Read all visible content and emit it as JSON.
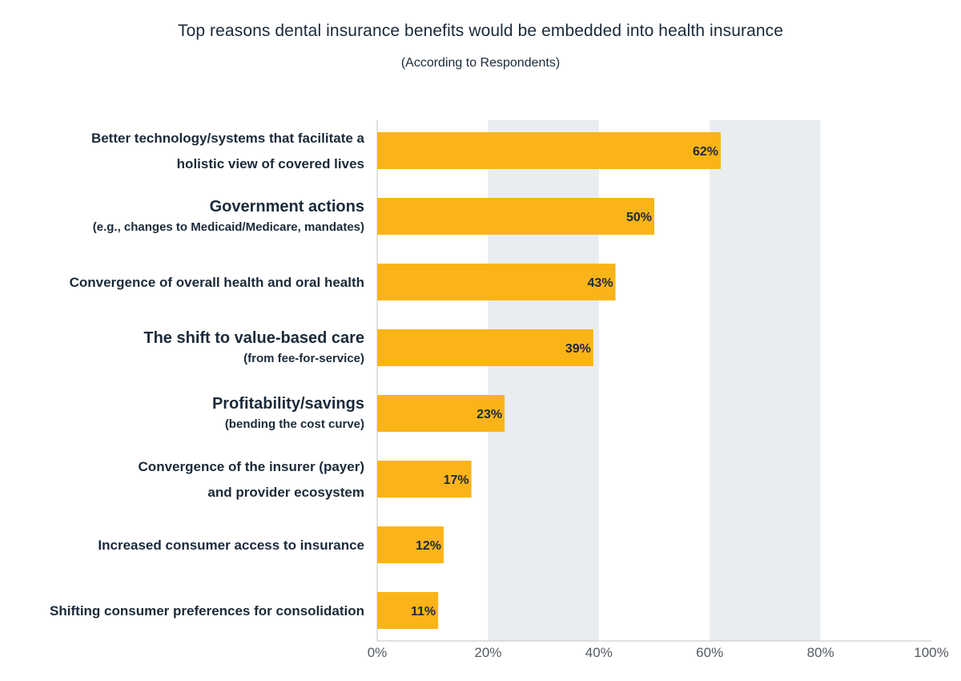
{
  "chart_data": {
    "type": "bar",
    "orientation": "horizontal",
    "title": "Top reasons dental insurance benefits would be embedded into health insurance",
    "subtitle": "(According to Respondents)",
    "xlabel": "",
    "ylabel": "",
    "xlim": [
      0,
      100
    ],
    "x_ticks": [
      "0%",
      "20%",
      "40%",
      "60%",
      "80%",
      "100%"
    ],
    "grid": "alternating vertical bands",
    "bar_color": "#fbb418",
    "band_color": "#e9edf0",
    "categories": [
      {
        "line1": "Better technology/systems that facilitate a",
        "line2": "holistic view of covered lives",
        "style": "two-line"
      },
      {
        "line1": "Government actions",
        "line2": "(e.g., changes to Medicaid/Medicare, mandates)",
        "style": "main-sub"
      },
      {
        "line1": "Convergence of overall health and oral health",
        "line2": "",
        "style": "single"
      },
      {
        "line1": "The shift to value-based care",
        "line2": "(from fee-for-service)",
        "style": "main-sub"
      },
      {
        "line1": "Profitability/savings",
        "line2": "(bending the cost curve)",
        "style": "main-sub"
      },
      {
        "line1": "Convergence of the insurer (payer)",
        "line2": "and provider ecosystem",
        "style": "two-line"
      },
      {
        "line1": "Increased consumer access to insurance",
        "line2": "",
        "style": "single"
      },
      {
        "line1": "Shifting consumer preferences for consolidation",
        "line2": "",
        "style": "single"
      }
    ],
    "values": [
      62,
      50,
      43,
      39,
      23,
      17,
      12,
      11
    ],
    "value_labels": [
      "62%",
      "50%",
      "43%",
      "39%",
      "23%",
      "17%",
      "12%",
      "11%"
    ]
  }
}
